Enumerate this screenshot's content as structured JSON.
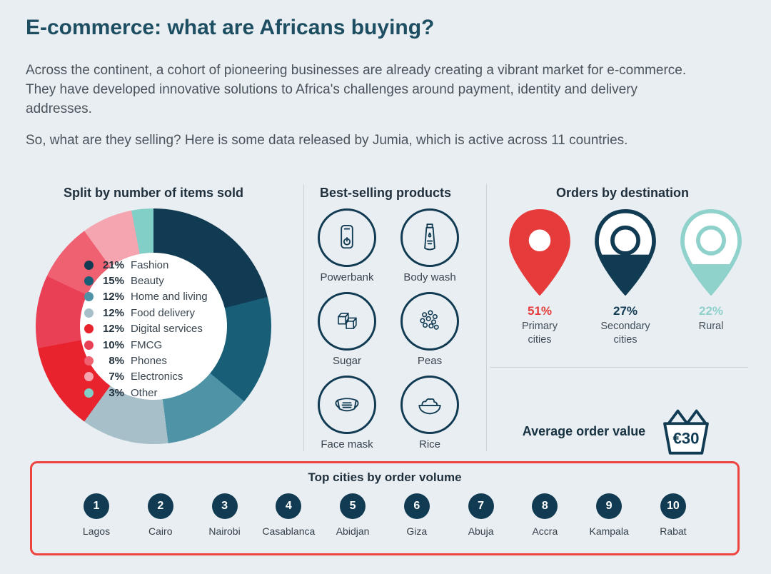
{
  "page": {
    "title": "E-commerce: what are Africans buying?",
    "intro1": "Across the continent, a cohort of pioneering businesses are already creating a vibrant market for e-commerce. They have developed innovative solutions to Africa's challenges around payment, identity and delivery addresses.",
    "intro2": "So, what are they selling? Here is some data released by Jumia, which is active across 11 countries."
  },
  "chart_data": [
    {
      "type": "pie",
      "title": "Split by number of items sold",
      "legend_position": "center",
      "segments": [
        {
          "label": "Fashion",
          "pct": 21,
          "color": "#113b52"
        },
        {
          "label": "Beauty",
          "pct": 15,
          "color": "#185e76"
        },
        {
          "label": "Home and living",
          "pct": 12,
          "color": "#4e93a6"
        },
        {
          "label": "Food delivery",
          "pct": 12,
          "color": "#a6bfc9"
        },
        {
          "label": "Digital services",
          "pct": 12,
          "color": "#e8232e"
        },
        {
          "label": "FMCG",
          "pct": 10,
          "color": "#e94056"
        },
        {
          "label": "Phones",
          "pct": 8,
          "color": "#ef6071"
        },
        {
          "label": "Electronics",
          "pct": 7,
          "color": "#f5a5b0"
        },
        {
          "label": "Other",
          "pct": 3,
          "color": "#82cfc8"
        }
      ]
    },
    {
      "type": "bar",
      "title": "Orders by destination",
      "items": [
        {
          "label": "Primary cities",
          "pct": 51,
          "color": "#e63b3b",
          "fill_level": 1.0
        },
        {
          "label": "Secondary cities",
          "pct": 27,
          "color": "#113b52",
          "fill_level": 0.47
        },
        {
          "label": "Rural",
          "pct": 22,
          "color": "#8fd1cb",
          "fill_level": 0.36
        }
      ]
    },
    {
      "type": "table",
      "title": "Top cities by order volume",
      "items": [
        {
          "rank": "1",
          "city": "Lagos"
        },
        {
          "rank": "2",
          "city": "Cairo"
        },
        {
          "rank": "3",
          "city": "Nairobi"
        },
        {
          "rank": "4",
          "city": "Casablanca"
        },
        {
          "rank": "5",
          "city": "Abidjan"
        },
        {
          "rank": "6",
          "city": "Giza"
        },
        {
          "rank": "7",
          "city": "Abuja"
        },
        {
          "rank": "8",
          "city": "Accra"
        },
        {
          "rank": "9",
          "city": "Kampala"
        },
        {
          "rank": "10",
          "city": "Rabat"
        }
      ]
    }
  ],
  "products": {
    "title": "Best-selling products",
    "items": [
      {
        "name": "Powerbank",
        "icon": "powerbank-icon"
      },
      {
        "name": "Body wash",
        "icon": "bodywash-icon"
      },
      {
        "name": "Sugar",
        "icon": "sugar-icon"
      },
      {
        "name": "Peas",
        "icon": "peas-icon"
      },
      {
        "name": "Face mask",
        "icon": "facemask-icon"
      },
      {
        "name": "Rice",
        "icon": "rice-icon"
      }
    ]
  },
  "average_order": {
    "label": "Average order value",
    "value": "€30"
  },
  "colors": {
    "navy": "#113b52",
    "accent_red": "#ee443f",
    "title": "#1d4e61",
    "divider": "#c9d4da",
    "background": "#e9eef3"
  }
}
